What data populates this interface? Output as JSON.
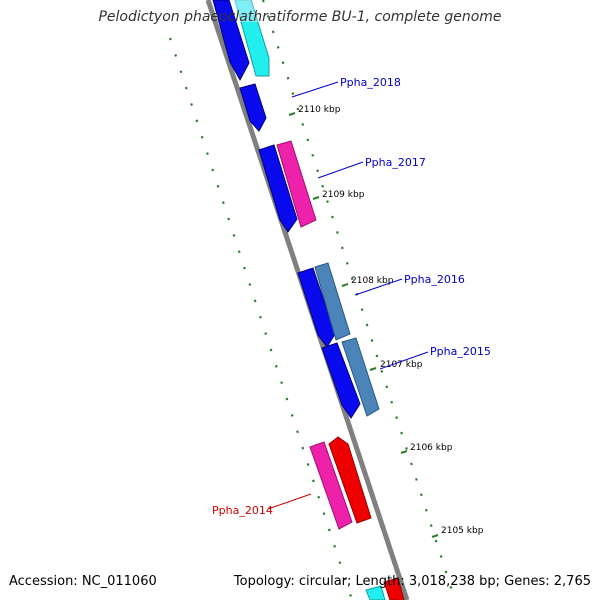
{
  "title": "Pelodictyon phaeoclathratiforme BU-1, complete genome",
  "footer": {
    "accession": "Accession: NC_011060",
    "summary": "Topology: circular; Length: 3,018,238 bp; Genes: 2,765"
  },
  "colors": {
    "backbone": "#808080",
    "tick": "#2e7d2e",
    "blue": "#0a0aee",
    "cyan": "#22eeee",
    "pink": "#ee22aa",
    "red": "#ee0000",
    "steel": "#4a84b8",
    "label_blue": "#0000cc",
    "label_red": "#cc0000"
  },
  "ticks": [
    {
      "label": "2110 kbp"
    },
    {
      "label": "2109 kbp"
    },
    {
      "label": "2108 kbp"
    },
    {
      "label": "2107 kbp"
    },
    {
      "label": "2106 kbp"
    },
    {
      "label": "2105 kbp"
    }
  ],
  "gene_labels": [
    {
      "label": "Ppha_2018"
    },
    {
      "label": "Ppha_2017"
    },
    {
      "label": "Ppha_2016"
    },
    {
      "label": "Ppha_2015"
    },
    {
      "label": "Ppha_2014"
    }
  ]
}
